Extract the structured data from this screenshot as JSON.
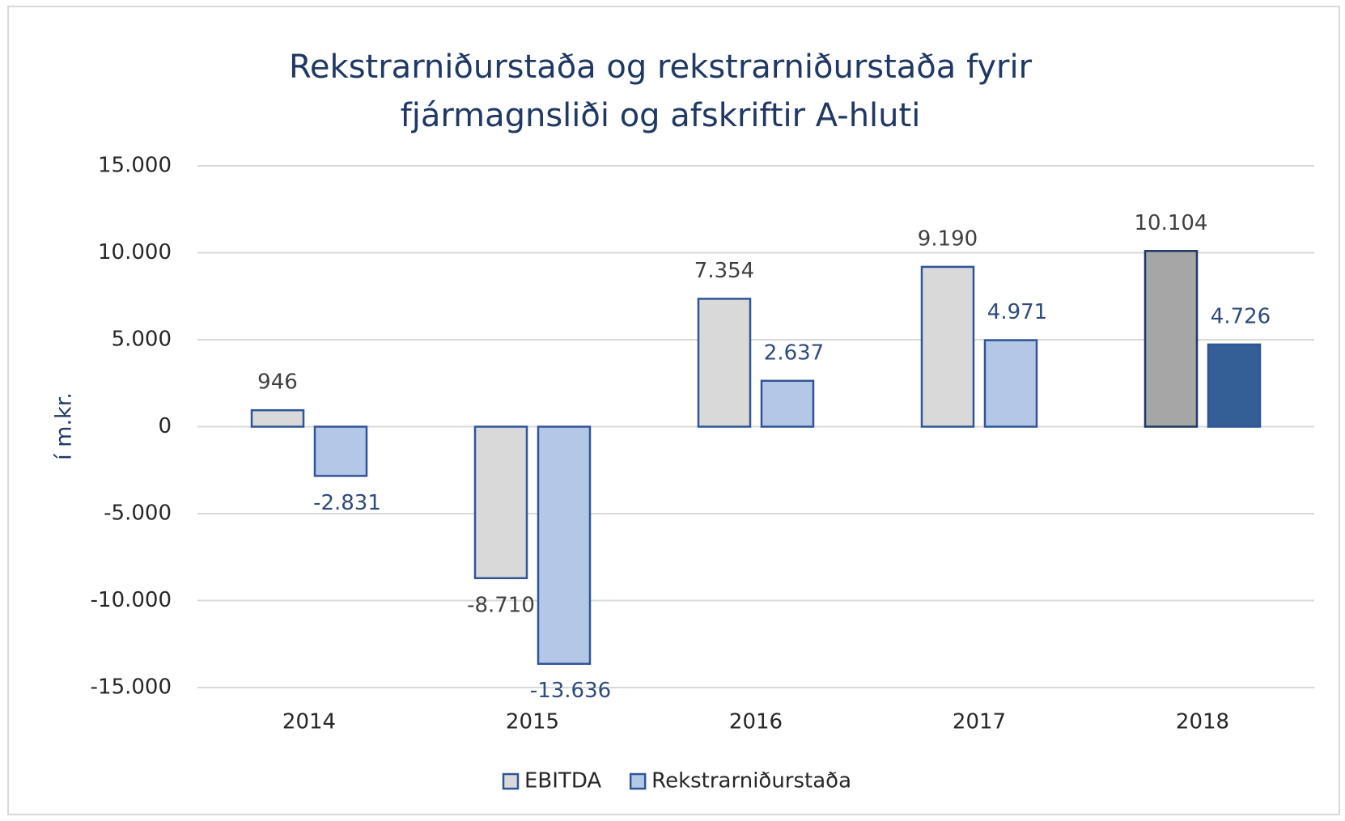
{
  "chart_data": {
    "type": "bar",
    "title": [
      "Rekstrarniðurstaða og rekstrarniðurstaða fyrir",
      "fjármagnsliði og afskriftir A-hluti"
    ],
    "y_label": "í m.kr.",
    "categories": [
      "2014",
      "2015",
      "2016",
      "2017",
      "2018"
    ],
    "series": [
      {
        "name": "EBITDA",
        "color": "#d9d9d9",
        "edge": "#2f5597",
        "label_color": "#404040",
        "colors": [
          "#d9d9d9",
          "#d9d9d9",
          "#d9d9d9",
          "#d9d9d9",
          "#a6a6a6"
        ],
        "edges": [
          "#2f5597",
          "#2f5597",
          "#2f5597",
          "#2f5597",
          "#1f3864"
        ],
        "values": [
          946,
          -8710,
          7354,
          9190,
          10104
        ],
        "value_labels": [
          "946",
          "-8.710",
          "7.354",
          "9.190",
          "10.104"
        ]
      },
      {
        "name": "Rekstrarniðurstaða",
        "color": "#b4c7e7",
        "edge": "#2f5597",
        "label_color": "#2f4b7c",
        "colors": [
          "#b4c7e7",
          "#b4c7e7",
          "#b4c7e7",
          "#b4c7e7",
          "#335f96"
        ],
        "edges": [
          "#2f5597",
          "#2f5597",
          "#2f5597",
          "#2f5597",
          "#2f5597"
        ],
        "values": [
          -2831,
          -13636,
          2637,
          4971,
          4726
        ],
        "value_labels": [
          "-2.831",
          "-13.636",
          "2.637",
          "4.971",
          "4.726"
        ]
      }
    ],
    "ylim": [
      -15000,
      15000
    ],
    "yticks": [
      {
        "value": -15000,
        "label": "-15.000"
      },
      {
        "value": -10000,
        "label": "-10.000"
      },
      {
        "value": -5000,
        "label": "-5.000"
      },
      0,
      {
        "value": 5000,
        "label": "5.000"
      },
      {
        "value": 10000,
        "label": "10.000"
      },
      {
        "value": 15000,
        "label": "15.000"
      }
    ],
    "grid": true,
    "legend": "bottom"
  }
}
